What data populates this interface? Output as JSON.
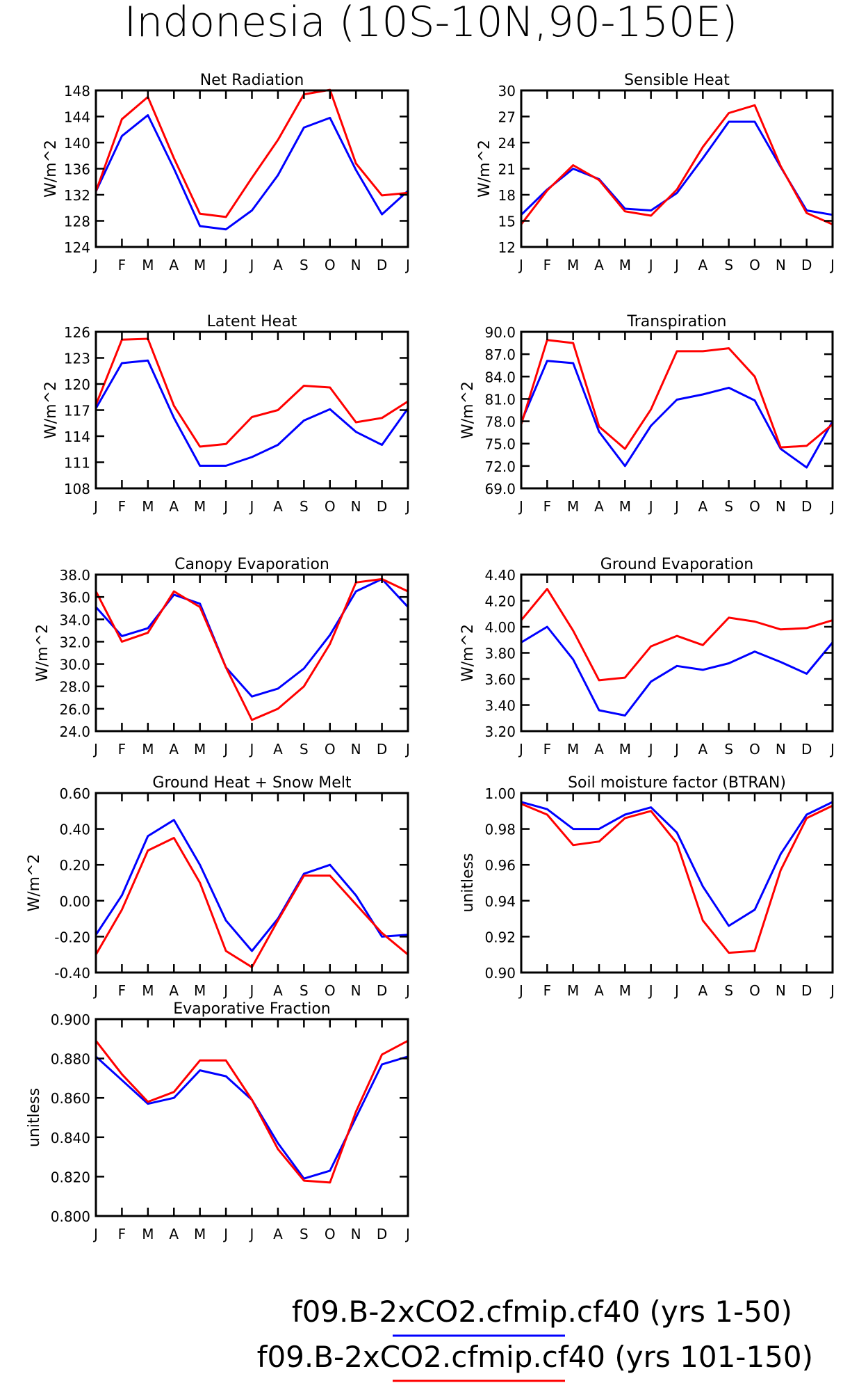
{
  "figure": {
    "title": "Indonesia (10S-10N,90-150E)"
  },
  "colors": {
    "series_a": "#0000ff",
    "series_b": "#ff0000"
  },
  "legend": [
    {
      "label": "f09.B-2xCO2.cfmip.cf40 (yrs 1-50)",
      "color": "#0000ff"
    },
    {
      "label": "f09.B-2xCO2.cfmip.cf40 (yrs 101-150)",
      "color": "#ff0000"
    }
  ],
  "chart_data": [
    {
      "type": "line",
      "title": "Net Radiation",
      "ylabel": "W/m^2",
      "categories": [
        "J",
        "F",
        "M",
        "A",
        "M",
        "J",
        "J",
        "A",
        "S",
        "O",
        "N",
        "D",
        "J"
      ],
      "ylim": [
        124,
        148
      ],
      "yticks": [
        "124",
        "128",
        "132",
        "136",
        "140",
        "144",
        "148"
      ],
      "series": [
        {
          "name": "f09.B-2xCO2.cfmip.cf40 (yrs 1-50)",
          "color": "#0000ff",
          "values": [
            132.5,
            141.0,
            144.2,
            136.0,
            127.2,
            126.7,
            129.6,
            135.0,
            142.3,
            143.8,
            135.8,
            129.0,
            132.6
          ]
        },
        {
          "name": "f09.B-2xCO2.cfmip.cf40 (yrs 101-150)",
          "color": "#ff0000",
          "values": [
            132.5,
            143.6,
            147.0,
            137.6,
            129.1,
            128.6,
            134.6,
            140.4,
            147.4,
            148.1,
            136.8,
            131.9,
            132.3
          ]
        }
      ]
    },
    {
      "type": "line",
      "title": "Sensible Heat",
      "ylabel": "W/m^2",
      "categories": [
        "J",
        "F",
        "M",
        "A",
        "M",
        "J",
        "J",
        "A",
        "S",
        "O",
        "N",
        "D",
        "J"
      ],
      "ylim": [
        12,
        30
      ],
      "yticks": [
        "12",
        "15",
        "18",
        "21",
        "24",
        "27",
        "30"
      ],
      "series": [
        {
          "name": "f09.B-2xCO2.cfmip.cf40 (yrs 1-50)",
          "color": "#0000ff",
          "values": [
            15.7,
            18.6,
            21.0,
            19.8,
            16.4,
            16.2,
            18.2,
            22.2,
            26.4,
            26.4,
            21.2,
            16.2,
            15.7
          ]
        },
        {
          "name": "f09.B-2xCO2.cfmip.cf40 (yrs 101-150)",
          "color": "#ff0000",
          "values": [
            14.6,
            18.5,
            21.4,
            19.7,
            16.1,
            15.6,
            18.6,
            23.5,
            27.4,
            28.3,
            21.3,
            15.9,
            14.6
          ]
        }
      ]
    },
    {
      "type": "line",
      "title": "Latent Heat",
      "ylabel": "W/m^2",
      "categories": [
        "J",
        "F",
        "M",
        "A",
        "M",
        "J",
        "J",
        "A",
        "S",
        "O",
        "N",
        "D",
        "J"
      ],
      "ylim": [
        108,
        126
      ],
      "yticks": [
        "108",
        "111",
        "114",
        "117",
        "120",
        "123",
        "126"
      ],
      "series": [
        {
          "name": "f09.B-2xCO2.cfmip.cf40 (yrs 1-50)",
          "color": "#0000ff",
          "values": [
            117.2,
            122.4,
            122.7,
            116.1,
            110.6,
            110.6,
            111.6,
            113.0,
            115.8,
            117.1,
            114.5,
            113.0,
            117.2
          ]
        },
        {
          "name": "f09.B-2xCO2.cfmip.cf40 (yrs 101-150)",
          "color": "#ff0000",
          "values": [
            117.6,
            125.1,
            125.2,
            117.5,
            112.8,
            113.1,
            116.2,
            117.0,
            119.8,
            119.6,
            115.6,
            116.1,
            118.0
          ]
        }
      ]
    },
    {
      "type": "line",
      "title": "Transpiration",
      "ylabel": "W/m^2",
      "categories": [
        "J",
        "F",
        "M",
        "A",
        "M",
        "J",
        "J",
        "A",
        "S",
        "O",
        "N",
        "D",
        "J"
      ],
      "ylim": [
        69.0,
        90.0
      ],
      "yticks": [
        "69.0",
        "72.0",
        "75.0",
        "78.0",
        "81.0",
        "84.0",
        "87.0",
        "90.0"
      ],
      "series": [
        {
          "name": "f09.B-2xCO2.cfmip.cf40 (yrs 1-50)",
          "color": "#0000ff",
          "values": [
            77.9,
            86.1,
            85.8,
            76.6,
            72.0,
            77.4,
            80.9,
            81.6,
            82.5,
            80.8,
            74.3,
            71.8,
            78.0
          ]
        },
        {
          "name": "f09.B-2xCO2.cfmip.cf40 (yrs 101-150)",
          "color": "#ff0000",
          "values": [
            77.6,
            88.9,
            88.5,
            77.3,
            74.3,
            79.6,
            87.4,
            87.4,
            87.8,
            84.0,
            74.5,
            74.7,
            77.6
          ]
        }
      ]
    },
    {
      "type": "line",
      "title": "Canopy Evaporation",
      "ylabel": "W/m^2",
      "categories": [
        "J",
        "F",
        "M",
        "A",
        "M",
        "J",
        "J",
        "A",
        "S",
        "O",
        "N",
        "D",
        "J"
      ],
      "ylim": [
        24.0,
        38.0
      ],
      "yticks": [
        "24.0",
        "26.0",
        "28.0",
        "30.0",
        "32.0",
        "34.0",
        "36.0",
        "38.0"
      ],
      "series": [
        {
          "name": "f09.B-2xCO2.cfmip.cf40 (yrs 1-50)",
          "color": "#0000ff",
          "values": [
            35.1,
            32.5,
            33.2,
            36.2,
            35.4,
            29.7,
            27.1,
            27.8,
            29.6,
            32.6,
            36.5,
            37.6,
            35.1
          ]
        },
        {
          "name": "f09.B-2xCO2.cfmip.cf40 (yrs 101-150)",
          "color": "#ff0000",
          "values": [
            36.5,
            32.0,
            32.8,
            36.5,
            35.1,
            29.7,
            25.0,
            26.0,
            28.0,
            31.8,
            37.3,
            37.6,
            36.5
          ]
        }
      ]
    },
    {
      "type": "line",
      "title": "Ground Evaporation",
      "ylabel": "W/m^2",
      "categories": [
        "J",
        "F",
        "M",
        "A",
        "M",
        "J",
        "J",
        "A",
        "S",
        "O",
        "N",
        "D",
        "J"
      ],
      "ylim": [
        3.2,
        4.4
      ],
      "yticks": [
        "3.20",
        "3.40",
        "3.60",
        "3.80",
        "4.00",
        "4.20",
        "4.40"
      ],
      "series": [
        {
          "name": "f09.B-2xCO2.cfmip.cf40 (yrs 1-50)",
          "color": "#0000ff",
          "values": [
            3.88,
            4.0,
            3.75,
            3.36,
            3.32,
            3.58,
            3.7,
            3.67,
            3.72,
            3.81,
            3.73,
            3.64,
            3.88
          ]
        },
        {
          "name": "f09.B-2xCO2.cfmip.cf40 (yrs 101-150)",
          "color": "#ff0000",
          "values": [
            4.05,
            4.29,
            3.97,
            3.59,
            3.61,
            3.85,
            3.93,
            3.86,
            4.07,
            4.04,
            3.98,
            3.99,
            4.05
          ]
        }
      ]
    },
    {
      "type": "line",
      "title": "Ground Heat + Snow Melt",
      "ylabel": "W/m^2",
      "categories": [
        "J",
        "F",
        "M",
        "A",
        "M",
        "J",
        "J",
        "A",
        "S",
        "O",
        "N",
        "D",
        "J"
      ],
      "ylim": [
        -0.4,
        0.6
      ],
      "yticks": [
        "-0.40",
        "-0.20",
        "0.00",
        "0.20",
        "0.40",
        "0.60"
      ],
      "series": [
        {
          "name": "f09.B-2xCO2.cfmip.cf40 (yrs 1-50)",
          "color": "#0000ff",
          "values": [
            -0.19,
            0.03,
            0.36,
            0.45,
            0.2,
            -0.11,
            -0.28,
            -0.1,
            0.15,
            0.2,
            0.03,
            -0.2,
            -0.19
          ]
        },
        {
          "name": "f09.B-2xCO2.cfmip.cf40 (yrs 101-150)",
          "color": "#ff0000",
          "values": [
            -0.3,
            -0.05,
            0.28,
            0.35,
            0.1,
            -0.28,
            -0.37,
            -0.11,
            0.14,
            0.14,
            -0.02,
            -0.18,
            -0.3
          ]
        }
      ]
    },
    {
      "type": "line",
      "title": "Soil moisture factor (BTRAN)",
      "ylabel": "unitless",
      "categories": [
        "J",
        "F",
        "M",
        "A",
        "M",
        "J",
        "J",
        "A",
        "S",
        "O",
        "N",
        "D",
        "J"
      ],
      "ylim": [
        0.9,
        1.0
      ],
      "yticks": [
        "0.90",
        "0.92",
        "0.94",
        "0.96",
        "0.98",
        "1.00"
      ],
      "series": [
        {
          "name": "f09.B-2xCO2.cfmip.cf40 (yrs 1-50)",
          "color": "#0000ff",
          "values": [
            0.995,
            0.991,
            0.98,
            0.98,
            0.988,
            0.992,
            0.978,
            0.948,
            0.926,
            0.935,
            0.966,
            0.988,
            0.995
          ]
        },
        {
          "name": "f09.B-2xCO2.cfmip.cf40 (yrs 101-150)",
          "color": "#ff0000",
          "values": [
            0.994,
            0.988,
            0.971,
            0.973,
            0.986,
            0.99,
            0.972,
            0.929,
            0.911,
            0.912,
            0.957,
            0.986,
            0.993
          ]
        }
      ]
    },
    {
      "type": "line",
      "title": "Evaporative Fraction",
      "ylabel": "unitless",
      "categories": [
        "J",
        "F",
        "M",
        "A",
        "M",
        "J",
        "J",
        "A",
        "S",
        "O",
        "N",
        "D",
        "J"
      ],
      "ylim": [
        0.8,
        0.9
      ],
      "yticks": [
        "0.800",
        "0.820",
        "0.840",
        "0.860",
        "0.880",
        "0.900"
      ],
      "series": [
        {
          "name": "f09.B-2xCO2.cfmip.cf40 (yrs 1-50)",
          "color": "#0000ff",
          "values": [
            0.881,
            0.869,
            0.857,
            0.86,
            0.874,
            0.871,
            0.859,
            0.837,
            0.819,
            0.823,
            0.85,
            0.877,
            0.881
          ]
        },
        {
          "name": "f09.B-2xCO2.cfmip.cf40 (yrs 101-150)",
          "color": "#ff0000",
          "values": [
            0.889,
            0.872,
            0.858,
            0.863,
            0.879,
            0.879,
            0.859,
            0.834,
            0.818,
            0.817,
            0.853,
            0.882,
            0.889
          ]
        }
      ]
    }
  ]
}
